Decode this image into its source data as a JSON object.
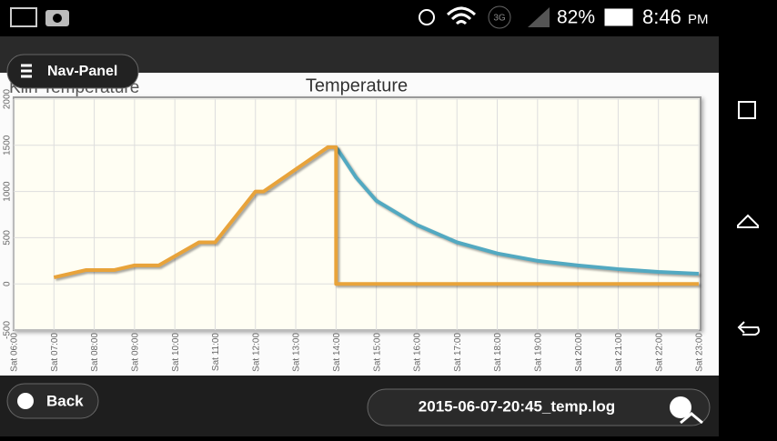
{
  "status_bar": {
    "battery": "82%",
    "time": "8:46",
    "ampm": "PM",
    "network": "3G"
  },
  "nav_panel": "Nav-Panel",
  "page_title": "Kiln Temperature",
  "back": "Back",
  "file": "2015-06-07-20:45_temp.log",
  "chart_data": {
    "type": "line",
    "title": "Temperature",
    "xlim": [
      6,
      23
    ],
    "xticks": [
      {
        "value": 6,
        "label": "Sat 06:00"
      },
      {
        "value": 7,
        "label": "Sat 07:00"
      },
      {
        "value": 8,
        "label": "Sat 08:00"
      },
      {
        "value": 9,
        "label": "Sat 09:00"
      },
      {
        "value": 10,
        "label": "Sat 10:00"
      },
      {
        "value": 11,
        "label": "Sat 11:00"
      },
      {
        "value": 12,
        "label": "Sat 12:00"
      },
      {
        "value": 13,
        "label": "Sat 13:00"
      },
      {
        "value": 14,
        "label": "Sat 14:00"
      },
      {
        "value": 15,
        "label": "Sat 15:00"
      },
      {
        "value": 16,
        "label": "Sat 16:00"
      },
      {
        "value": 17,
        "label": "Sat 17:00"
      },
      {
        "value": 18,
        "label": "Sat 18:00"
      },
      {
        "value": 19,
        "label": "Sat 19:00"
      },
      {
        "value": 20,
        "label": "Sat 20:00"
      },
      {
        "value": 21,
        "label": "Sat 21:00"
      },
      {
        "value": 22,
        "label": "Sat 22:00"
      },
      {
        "value": 23,
        "label": "Sat 23:00"
      }
    ],
    "ylim": [
      -500,
      2000
    ],
    "yticks": [
      -500,
      0,
      500,
      1000,
      1500,
      2000
    ],
    "grid": true,
    "series": [
      {
        "color": "#52a9c1",
        "x": [
          14,
          14.5,
          15,
          16,
          17,
          18,
          19,
          20,
          21,
          22,
          23
        ],
        "values": [
          1480,
          1150,
          900,
          640,
          450,
          330,
          250,
          200,
          160,
          130,
          110
        ]
      },
      {
        "color": "#e8a33a",
        "x": [
          7,
          7.8,
          8.5,
          9,
          9.6,
          10.6,
          11,
          12,
          12.2,
          13.8,
          14,
          14,
          23
        ],
        "values": [
          70,
          150,
          150,
          200,
          200,
          450,
          450,
          1000,
          1000,
          1480,
          1480,
          0,
          0
        ]
      }
    ]
  }
}
